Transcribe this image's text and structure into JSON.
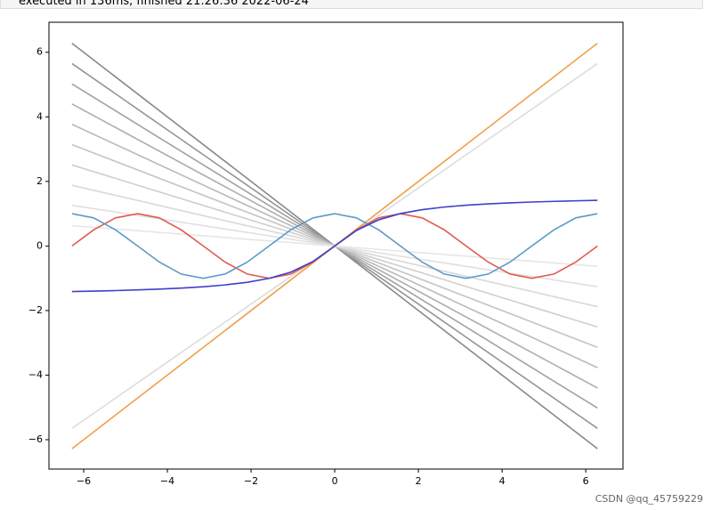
{
  "header": {
    "status": "executed in 136ms, finished 21:26:36 2022-06-24"
  },
  "watermark": "CSDN @qq_45759229",
  "chart_data": {
    "type": "line",
    "x": [
      -6.28,
      -5.76,
      -5.24,
      -4.71,
      -4.19,
      -3.67,
      -3.14,
      -2.62,
      -2.09,
      -1.57,
      -1.05,
      -0.52,
      0,
      0.52,
      1.05,
      1.57,
      2.09,
      2.62,
      3.14,
      3.67,
      4.19,
      4.71,
      5.24,
      5.76,
      6.28
    ],
    "xlim": [
      -6.83,
      6.89
    ],
    "ylim": [
      -6.91,
      6.93
    ],
    "xticks": [
      {
        "value": -6,
        "label": "−6"
      },
      {
        "value": -4,
        "label": "−4"
      },
      {
        "value": -2,
        "label": "−2"
      },
      0,
      2,
      4,
      6
    ],
    "yticks": [
      {
        "value": -6,
        "label": "−6"
      },
      {
        "value": -4,
        "label": "−4"
      },
      {
        "value": -2,
        "label": "−2"
      },
      0,
      2,
      4,
      6
    ],
    "series": [
      {
        "color": "#888888",
        "x": [
          -6.28,
          6.28
        ],
        "values": [
          6.28,
          -6.28
        ]
      },
      {
        "color": "#959595",
        "x": [
          -6.28,
          6.28
        ],
        "values": [
          5.65,
          -5.65
        ]
      },
      {
        "color": "#a1a1a1",
        "x": [
          -6.28,
          6.28
        ],
        "values": [
          5.02,
          -5.02
        ]
      },
      {
        "color": "#adadad",
        "x": [
          -6.28,
          6.28
        ],
        "values": [
          4.4,
          -4.4
        ]
      },
      {
        "color": "#b9b9b9",
        "x": [
          -6.28,
          6.28
        ],
        "values": [
          3.77,
          -3.77
        ]
      },
      {
        "color": "#c4c4c4",
        "x": [
          -6.28,
          6.28
        ],
        "values": [
          3.14,
          -3.14
        ]
      },
      {
        "color": "#cfcfcf",
        "x": [
          -6.28,
          6.28
        ],
        "values": [
          2.51,
          -2.51
        ]
      },
      {
        "color": "#d8d8d8",
        "x": [
          -6.28,
          6.28
        ],
        "values": [
          1.88,
          -1.88
        ]
      },
      {
        "color": "#e0e0e0",
        "x": [
          -6.28,
          6.28
        ],
        "values": [
          1.26,
          -1.26
        ]
      },
      {
        "color": "#e6e6e6",
        "x": [
          -6.28,
          6.28
        ],
        "values": [
          0.63,
          -0.63
        ]
      },
      {
        "color": "#dddddd",
        "x": [
          -6.28,
          6.28
        ],
        "values": [
          -5.65,
          5.65
        ]
      },
      {
        "color": "#f0a04b",
        "x": [
          -6.28,
          6.28
        ],
        "values": [
          -6.28,
          6.28
        ]
      },
      {
        "color": "#e05a4f",
        "values": [
          0,
          0.5,
          0.87,
          1,
          0.87,
          0.5,
          0,
          -0.5,
          -0.87,
          -1,
          -0.87,
          -0.5,
          0,
          0.5,
          0.87,
          1,
          0.87,
          0.5,
          0,
          -0.5,
          -0.87,
          -1,
          -0.87,
          -0.5,
          0
        ]
      },
      {
        "color": "#5b9bc8",
        "values": [
          1,
          0.87,
          0.5,
          0,
          -0.5,
          -0.87,
          -1,
          -0.87,
          -0.5,
          0,
          0.5,
          0.87,
          1,
          0.87,
          0.5,
          0,
          -0.5,
          -0.87,
          -1,
          -0.87,
          -0.5,
          0,
          0.5,
          0.87,
          1
        ]
      },
      {
        "color": "#3f3fcc",
        "values": [
          -1.413,
          -1.399,
          -1.382,
          -1.361,
          -1.336,
          -1.304,
          -1.263,
          -1.206,
          -1.125,
          -1.004,
          -0.809,
          -0.482,
          0,
          0.482,
          0.809,
          1.004,
          1.125,
          1.206,
          1.263,
          1.304,
          1.336,
          1.361,
          1.382,
          1.399,
          1.413
        ]
      }
    ]
  }
}
